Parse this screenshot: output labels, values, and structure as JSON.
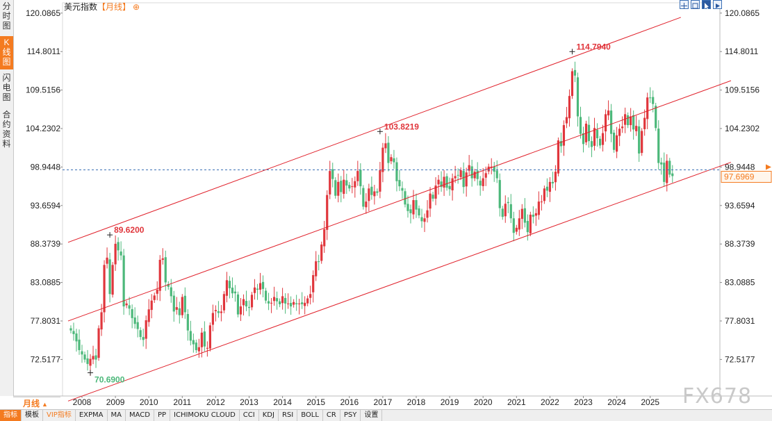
{
  "left_tabs": [
    {
      "label": "分时图",
      "active": false
    },
    {
      "label": "K线图",
      "active": true
    },
    {
      "label": "闪电图",
      "active": false
    },
    {
      "label": "合约资料",
      "active": false
    }
  ],
  "header": {
    "name": "美元指数",
    "period": "【月线】",
    "plus_icon": "⊕"
  },
  "toolbar_icons": [
    "crosshair-icon",
    "zoom-fit-icon",
    "cursor-icon",
    "play-icon"
  ],
  "period_select": "月线",
  "bottom_tabs": [
    "指标",
    "模板",
    "VIP指标",
    "EXPMA",
    "MA",
    "MACD",
    "PP",
    "ICHIMOKU CLOUD",
    "CCI",
    "KDJ",
    "RSI",
    "BOLL",
    "CR",
    "PSY",
    "设置"
  ],
  "watermark": "FX678",
  "colors": {
    "up": "#e0363c",
    "down": "#4cb87a",
    "channel": "#e0202a",
    "current": "#f47b20",
    "dash": "#3a6fb5"
  },
  "chart_data": {
    "type": "candlestick",
    "title": "美元指数【月线】",
    "y_ticks": [
      "120.0865",
      "114.8011",
      "109.5156",
      "104.2302",
      "98.9448",
      "93.6594",
      "88.3739",
      "83.0885",
      "77.8031",
      "72.5177"
    ],
    "x_ticks": [
      "2008",
      "2009",
      "2010",
      "2011",
      "2012",
      "2013",
      "2014",
      "2015",
      "2016",
      "2017",
      "2018",
      "2019",
      "2020",
      "2021",
      "2022",
      "2023",
      "2024",
      "2025"
    ],
    "ylim": [
      67.5,
      121.5
    ],
    "current_price": "97.6969",
    "annotations": [
      {
        "label": "114.7940",
        "date": "2022-09",
        "value": 114.794
      },
      {
        "label": "103.8219",
        "date": "2016-12",
        "value": 103.8219
      },
      {
        "label": "89.6200",
        "date": "2008-11",
        "value": 89.62
      },
      {
        "label": "70.6900",
        "date": "2008-04",
        "value": 70.69
      }
    ],
    "channel_lines": [
      {
        "from": [
          "2007-08",
          88.6
        ],
        "to": [
          "2025-12",
          119.5
        ]
      },
      {
        "from": [
          "2007-08",
          77.8
        ],
        "to": [
          "2027-06",
          110.8
        ]
      },
      {
        "from": [
          "2007-08",
          66.8
        ],
        "to": [
          "2027-06",
          99.6
        ]
      }
    ],
    "series_close": [
      76.5,
      76.0,
      75.0,
      73.8,
      73.2,
      72.5,
      71.9,
      72.6,
      73.0,
      72.5,
      76.8,
      79.0,
      85.5,
      86.5,
      81.5,
      85.5,
      88.4,
      87.5,
      86.8,
      79.8,
      80.2,
      79.5,
      78.2,
      77.4,
      76.7,
      75.6,
      75.2,
      77.9,
      79.4,
      80.6,
      81.3,
      82.1,
      86.2,
      86.4,
      83.1,
      82.5,
      81.2,
      79.1,
      79.7,
      78.6,
      81.1,
      79.0,
      76.5,
      75.1,
      74.6,
      73.8,
      74.2,
      76.2,
      74.3,
      74.1,
      77.2,
      78.9,
      79.3,
      78.9,
      79.1,
      81.5,
      83.4,
      82.3,
      81.6,
      81.6,
      78.7,
      79.8,
      80.8,
      79.8,
      79.6,
      81.4,
      82.4,
      82.1,
      83.0,
      82.2,
      80.6,
      80.2,
      80.3,
      81.1,
      80.5,
      80.1,
      81.2,
      80.2,
      80.2,
      79.8,
      80.4,
      80.1,
      80.2,
      80.1,
      80.3,
      80.9,
      81.5,
      84.1,
      86.0,
      85.9,
      88.3,
      90.4,
      95.1,
      98.4,
      97.3,
      95.0,
      96.9,
      95.5,
      97.2,
      96.4,
      96.0,
      96.3,
      97.0,
      98.4,
      96.3,
      93.5,
      94.2,
      96.0,
      95.1,
      95.6,
      95.4,
      98.5,
      101.6,
      102.2,
      99.5,
      100.3,
      99.6,
      97.0,
      96.3,
      95.7,
      93.8,
      92.9,
      92.6,
      94.4,
      93.1,
      92.3,
      91.5,
      91.9,
      93.0,
      95.3,
      94.6,
      96.4,
      97.2,
      96.2,
      97.6,
      96.1,
      95.9,
      97.4,
      97.7,
      97.8,
      98.5,
      96.2,
      98.2,
      99.2,
      97.4,
      98.3,
      97.3,
      96.4,
      97.4,
      98.1,
      99.0,
      99.0,
      98.3,
      97.4,
      93.3,
      92.1,
      93.9,
      94.0,
      91.9,
      89.9,
      90.6,
      91.9,
      93.2,
      91.3,
      90.0,
      92.4,
      92.1,
      92.6,
      94.2,
      94.2,
      96.0,
      95.7,
      96.9,
      96.7,
      98.3,
      102.6,
      101.8,
      104.7,
      105.8,
      108.7,
      112.1,
      111.5,
      105.9,
      103.5,
      102.1,
      104.9,
      102.5,
      101.7,
      104.3,
      102.9,
      101.9,
      103.6,
      106.2,
      106.7,
      103.5,
      101.3,
      103.3,
      104.2,
      104.5,
      106.2,
      104.7,
      105.9,
      104.1,
      104.6,
      100.8,
      103.9,
      105.7,
      108.5,
      108.4,
      107.6,
      104.3,
      99.5,
      99.3,
      96.9,
      99.8,
      97.9,
      97.7
    ]
  }
}
